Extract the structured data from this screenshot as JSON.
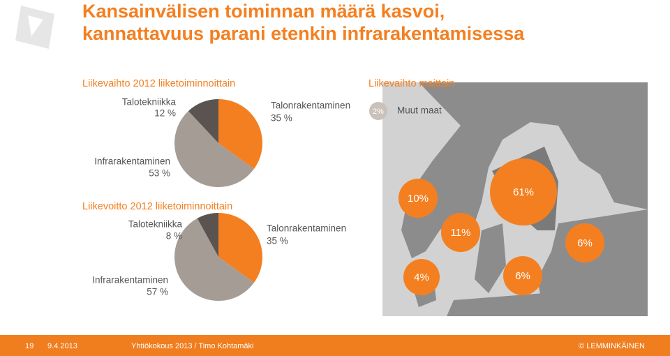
{
  "title": [
    "Kansainvälisen toiminnan määrä kasvoi,",
    "kannattavuus parani etenkin infrarakentamisessa"
  ],
  "chart_data": [
    {
      "type": "pie",
      "title": "Liikevaihto 2012 liiketoiminnoittain",
      "categories": [
        "Talotekniikka",
        "Talonrakentaminen",
        "Infrarakentaminen"
      ],
      "values": [
        12,
        35,
        53
      ],
      "value_labels": [
        "12 %",
        "35 %",
        "53 %"
      ],
      "colors": [
        "#5a5350",
        "#f47f20",
        "#a59d95"
      ]
    },
    {
      "type": "pie",
      "title": "Liikevoitto 2012 liiketoiminnoittain",
      "categories": [
        "Talotekniikka",
        "Talonrakentaminen",
        "Infrarakentaminen"
      ],
      "values": [
        8,
        35,
        57
      ],
      "value_labels": [
        "8 %",
        "35 %",
        "57 %"
      ],
      "colors": [
        "#5a5350",
        "#f47f20",
        "#a59d95"
      ]
    },
    {
      "type": "bubble-map",
      "title": "Liikevaihto maittain",
      "categories": [
        null,
        null,
        null,
        null,
        null,
        null,
        "Muut maat"
      ],
      "values": [
        61,
        10,
        11,
        6,
        4,
        6,
        2
      ],
      "value_labels": [
        "61%",
        "10%",
        "11%",
        "6%",
        "4%",
        "6%",
        "2%"
      ],
      "colors": [
        "#f47f20",
        "#f47f20",
        "#f47f20",
        "#f47f20",
        "#f47f20",
        "#f47f20",
        "#c9c1ba"
      ]
    }
  ],
  "footer": {
    "page": "19",
    "date": "9.4.2013",
    "event": "Yhtiökokous 2013 / Timo Kohtamäki",
    "brand": "© LEMMINKÄINEN"
  }
}
